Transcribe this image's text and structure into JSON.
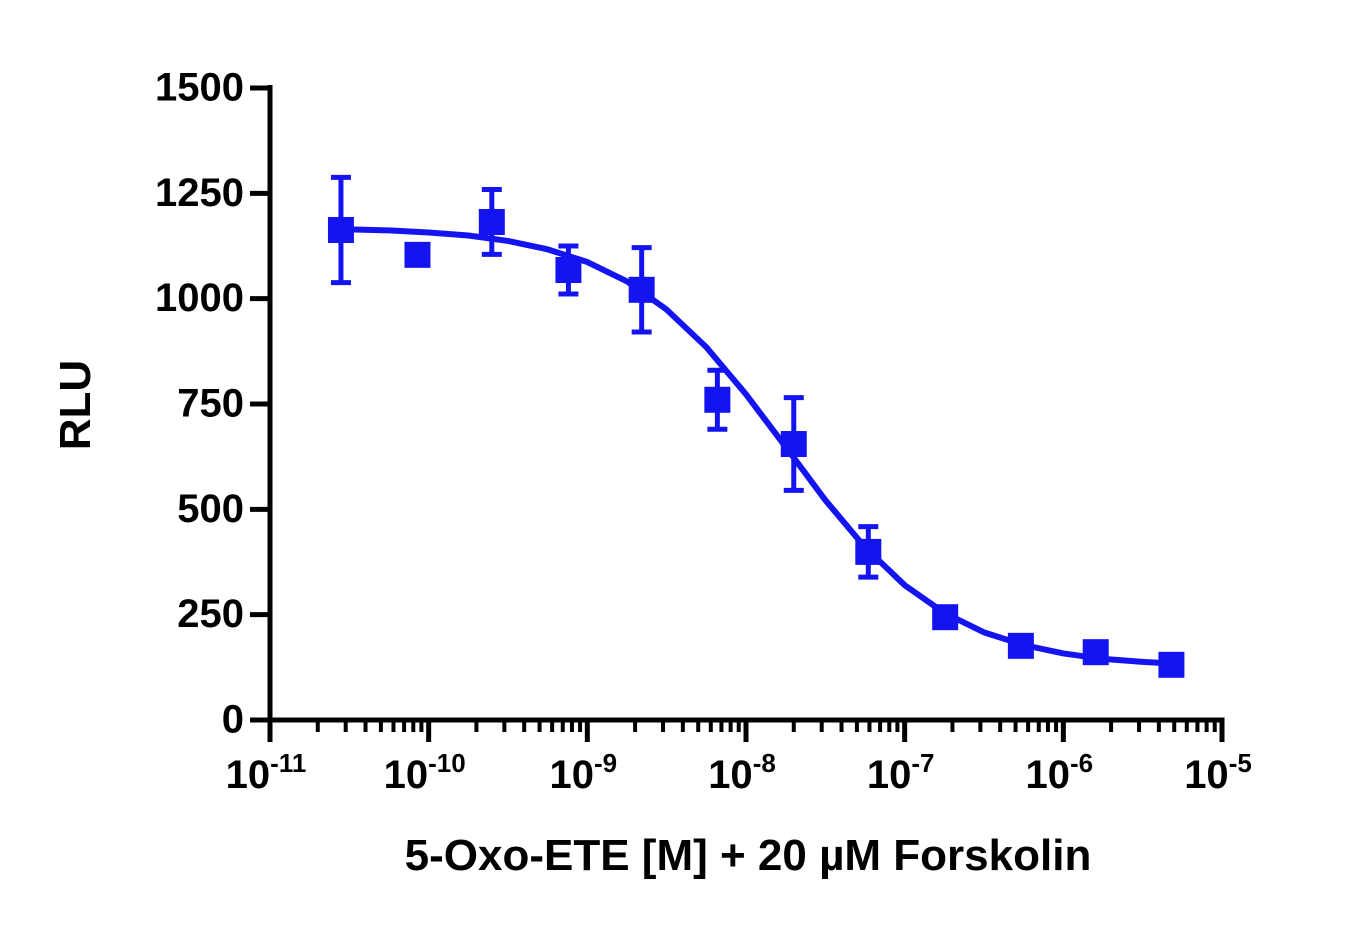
{
  "chart_data": {
    "type": "scatter",
    "xlabel": "5-Oxo-ETE [M] + 20 µM Forskolin",
    "ylabel": "RLU",
    "xscale": "log",
    "xlim": [
      1e-11,
      1e-05
    ],
    "ylim": [
      0,
      1500
    ],
    "xticks": [
      {
        "value": 1e-11,
        "base": "10",
        "exponent": "-11"
      },
      {
        "value": 1e-10,
        "base": "10",
        "exponent": "-10"
      },
      {
        "value": 1e-09,
        "base": "10",
        "exponent": "-9"
      },
      {
        "value": 1e-08,
        "base": "10",
        "exponent": "-8"
      },
      {
        "value": 1e-07,
        "base": "10",
        "exponent": "-7"
      },
      {
        "value": 1e-06,
        "base": "10",
        "exponent": "-6"
      },
      {
        "value": 1e-05,
        "base": "10",
        "exponent": "-5"
      }
    ],
    "yticks": [
      0,
      250,
      500,
      750,
      1000,
      1250,
      1500
    ],
    "minor_ticks": true,
    "series": [
      {
        "color": "#1414f0",
        "x": [
          2.8e-11,
          8.5e-11,
          2.5e-10,
          7.6e-10,
          2.2e-09,
          6.6e-09,
          2e-08,
          5.9e-08,
          1.8e-07,
          5.4e-07,
          1.6e-06,
          4.8e-06
        ],
        "values": [
          1163,
          1104,
          1182,
          1068,
          1021,
          760,
          655,
          399,
          244,
          176,
          161,
          131
        ],
        "errors": [
          125,
          null,
          77,
          57,
          100,
          70,
          110,
          60,
          20,
          null,
          null,
          null
        ]
      }
    ],
    "curve": {
      "color": "#1414f0",
      "x": [
        2.82e-11,
        5.62e-11,
        1e-10,
        1.78e-10,
        3.16e-10,
        5.62e-10,
        1e-09,
        1.78e-09,
        3.16e-09,
        5.62e-09,
        1e-08,
        1.78e-08,
        3.16e-08,
        5.62e-08,
        1e-07,
        1.78e-07,
        3.16e-07,
        5.62e-07,
        1e-06,
        1.78e-06,
        3.16e-06,
        4.79e-06
      ],
      "values": [
        1165,
        1162,
        1157,
        1150,
        1137,
        1117,
        1087,
        1041,
        974,
        885,
        773,
        648,
        522,
        410,
        320,
        254,
        208,
        178,
        158,
        145,
        138,
        134
      ]
    }
  }
}
